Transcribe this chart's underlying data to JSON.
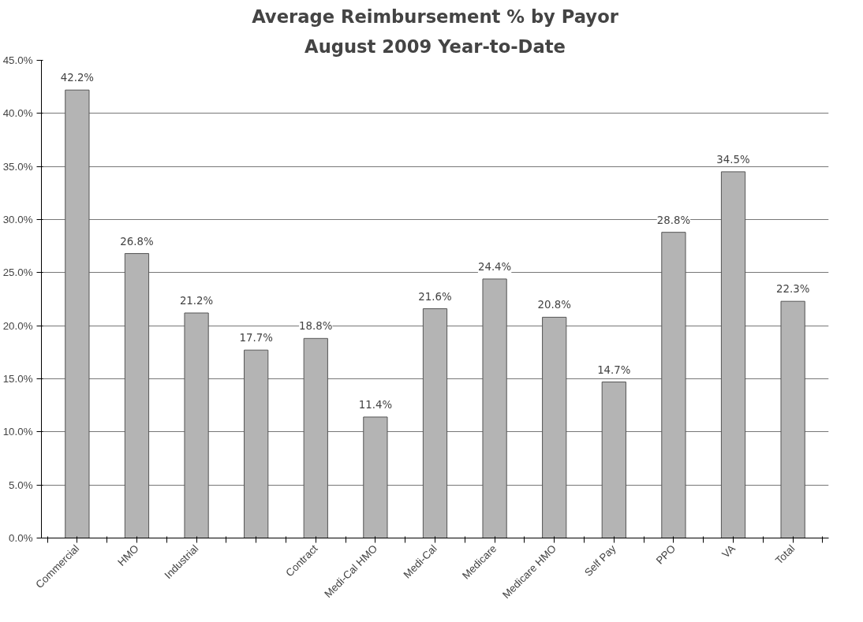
{
  "chart_data": {
    "type": "bar",
    "title": "Average Reimbursement % by Payor",
    "subtitle": "August 2009 Year-to-Date",
    "categories": [
      "Commercial",
      "HMO",
      "Industrial",
      null,
      "Contract",
      "Medi-Cal HMO",
      "Medi-Cal",
      "Medicare",
      "Medicare HMO",
      "Self Pay",
      "PPO",
      "VA",
      "Total"
    ],
    "values": [
      42.2,
      26.8,
      21.2,
      17.7,
      18.8,
      11.4,
      21.6,
      24.4,
      20.8,
      14.7,
      28.8,
      34.5,
      22.3
    ],
    "value_labels": [
      "42.2%",
      "26.8%",
      "21.2%",
      "17.7%",
      "18.8%",
      "11.4%",
      "21.6%",
      "24.4%",
      "20.8%",
      "14.7%",
      "28.8%",
      "34.5%",
      "22.3%"
    ],
    "color": "#b4b4b4",
    "ylim": [
      0,
      45
    ],
    "yticks": [
      {
        "value": 0,
        "label": "0.0%"
      },
      {
        "value": 5,
        "label": "5.0%"
      },
      {
        "value": 10,
        "label": "10.0%"
      },
      {
        "value": 15,
        "label": "15.0%"
      },
      {
        "value": 20,
        "label": "20.0%"
      },
      {
        "value": 25,
        "label": "25.0%"
      },
      {
        "value": 30,
        "label": "30.0%"
      },
      {
        "value": 35,
        "label": "35.0%"
      },
      {
        "value": 40,
        "label": "40.0%"
      },
      {
        "value": 45,
        "label": "45.0%"
      }
    ],
    "grid": "y"
  }
}
